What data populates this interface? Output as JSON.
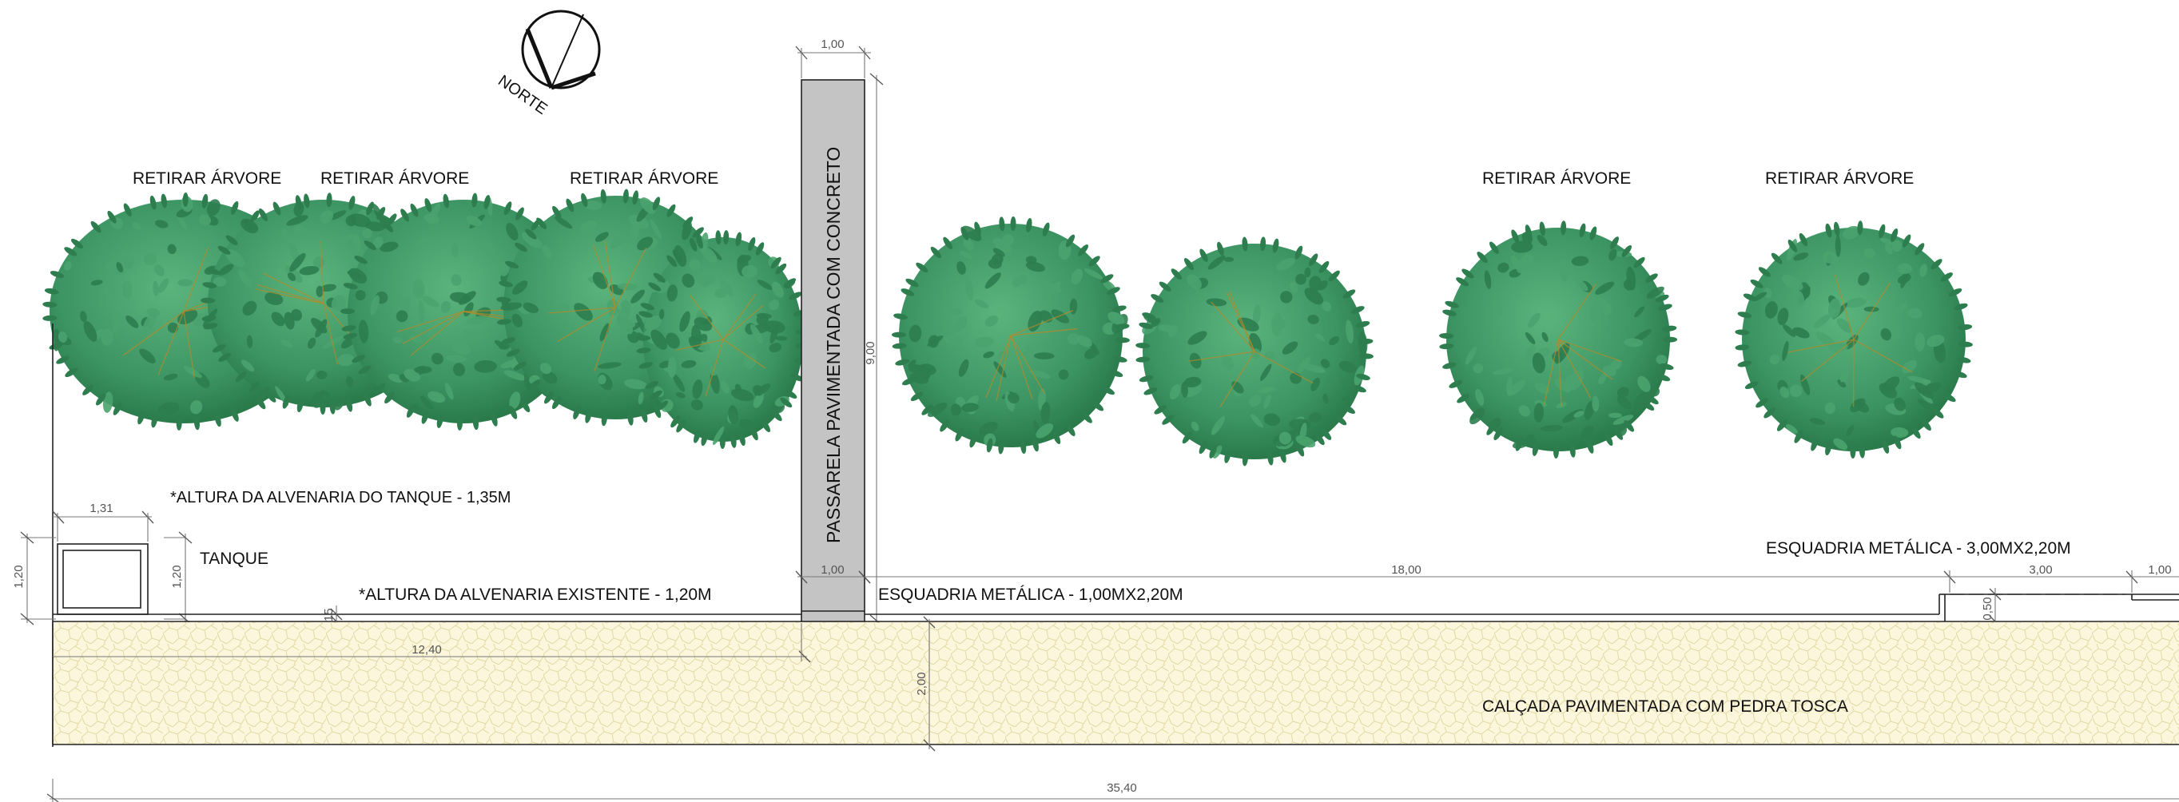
{
  "north": {
    "label": "NORTE"
  },
  "trees": {
    "remove_label": "RETIRAR ÁRVORE"
  },
  "walkway": {
    "label": "PASSARELA PAVIMENTADA COM CONCRETO",
    "width_top": "1,00",
    "width_bottom": "1,00",
    "length": "9,00"
  },
  "tank": {
    "label": "TANQUE",
    "note": "*ALTURA DA ALVENARIA DO TANQUE - 1,35M",
    "width": "1,31",
    "height": "1,20",
    "height_inner": "1,20"
  },
  "wall": {
    "note": "*ALTURA DA ALVENARIA EXISTENTE - 1,20M",
    "thickness": "0,15",
    "length_left": "12,40",
    "length_right": "18,00"
  },
  "frames": {
    "door_small": "ESQUADRIA METÁLICA - 1,00MX2,20M",
    "door_large": "ESQUADRIA METÁLICA - 3,00MX2,20M",
    "gate_width": "3,00",
    "gate_depth": "0,50",
    "gate_side": "1,00"
  },
  "sidewalk": {
    "label": "CALÇADA PAVIMENTADA COM PEDRA TOSCA",
    "width": "2,00",
    "total_length": "35,40"
  },
  "colors": {
    "tree_dark": "#2e7d4f",
    "tree_light": "#4aa36e",
    "tree_branch": "#b58a2a",
    "walkway_fill": "#c4c4c4",
    "sidewalk_fill": "#fbf6dc",
    "sidewalk_stone": "#e7dfae"
  }
}
